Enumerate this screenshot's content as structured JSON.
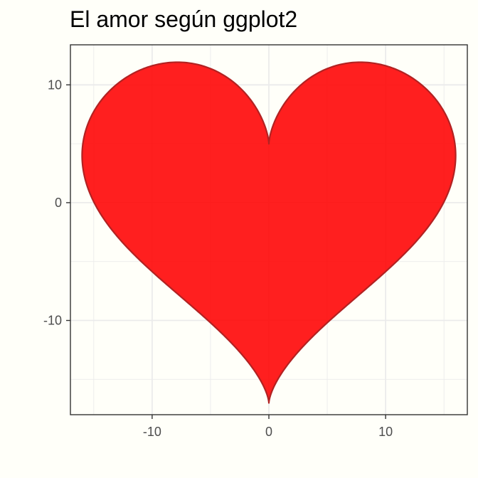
{
  "chart_data": {
    "type": "area",
    "title": "El amor según ggplot2",
    "xlabel": "",
    "ylabel": "",
    "xlim": [
      -17.0,
      17.0
    ],
    "ylim": [
      -18.0,
      13.4
    ],
    "x_ticks": [
      -10,
      0,
      10
    ],
    "x_tick_labels": [
      "-10",
      "0",
      "10"
    ],
    "y_ticks": [
      -10,
      0,
      10
    ],
    "y_tick_labels": [
      "-10",
      "0",
      "10"
    ],
    "grid": true,
    "series": [
      {
        "shape": "heart curve: x = 16 sin^3(t), y = 13 cos(t) - 5 cos(2t) - 2 cos(3t) - cos(4t)",
        "points": [
          [
            0.0,
            5.0
          ],
          [
            0.12,
            5.01
          ],
          [
            0.94,
            5.63
          ],
          [
            2.95,
            7.54
          ],
          [
            6.03,
            10.23
          ],
          [
            9.6,
            11.82
          ],
          [
            12.69,
            11.47
          ],
          [
            14.68,
            9.24
          ],
          [
            15.52,
            6.19
          ],
          [
            15.77,
            3.3
          ],
          [
            15.94,
            1.0
          ],
          [
            16.0,
            -1.0
          ],
          [
            15.57,
            -3.16
          ],
          [
            14.32,
            -5.36
          ],
          [
            12.38,
            -7.27
          ],
          [
            10.0,
            -9.0
          ],
          [
            7.62,
            -10.76
          ],
          [
            5.38,
            -12.48
          ],
          [
            3.33,
            -14.22
          ],
          [
            1.72,
            -15.76
          ],
          [
            0.54,
            -16.78
          ],
          [
            0.0,
            -17.0
          ],
          [
            -0.54,
            -16.78
          ],
          [
            -1.72,
            -15.76
          ],
          [
            -3.33,
            -14.22
          ],
          [
            -5.38,
            -12.48
          ],
          [
            -7.62,
            -10.76
          ],
          [
            -10.0,
            -9.0
          ],
          [
            -12.38,
            -7.27
          ],
          [
            -14.32,
            -5.36
          ],
          [
            -15.57,
            -3.16
          ],
          [
            -16.0,
            -1.0
          ],
          [
            -15.94,
            1.0
          ],
          [
            -15.77,
            3.3
          ],
          [
            -15.52,
            6.19
          ],
          [
            -14.68,
            9.24
          ],
          [
            -12.69,
            11.47
          ],
          [
            -9.6,
            11.82
          ],
          [
            -6.03,
            10.23
          ],
          [
            -2.95,
            7.54
          ],
          [
            -0.94,
            5.63
          ],
          [
            -0.12,
            5.01
          ],
          [
            0.0,
            5.0
          ]
        ]
      }
    ]
  },
  "colors": {
    "fill": "#FF0000",
    "fill_alpha": 0.88,
    "outline": "#B22222",
    "page_background": "#FFFFF9",
    "panel_background": "#FFFFF9",
    "grid_major": "#EBEBEB",
    "panel_border": "#333333",
    "tick_text": "#4D4D4D"
  }
}
